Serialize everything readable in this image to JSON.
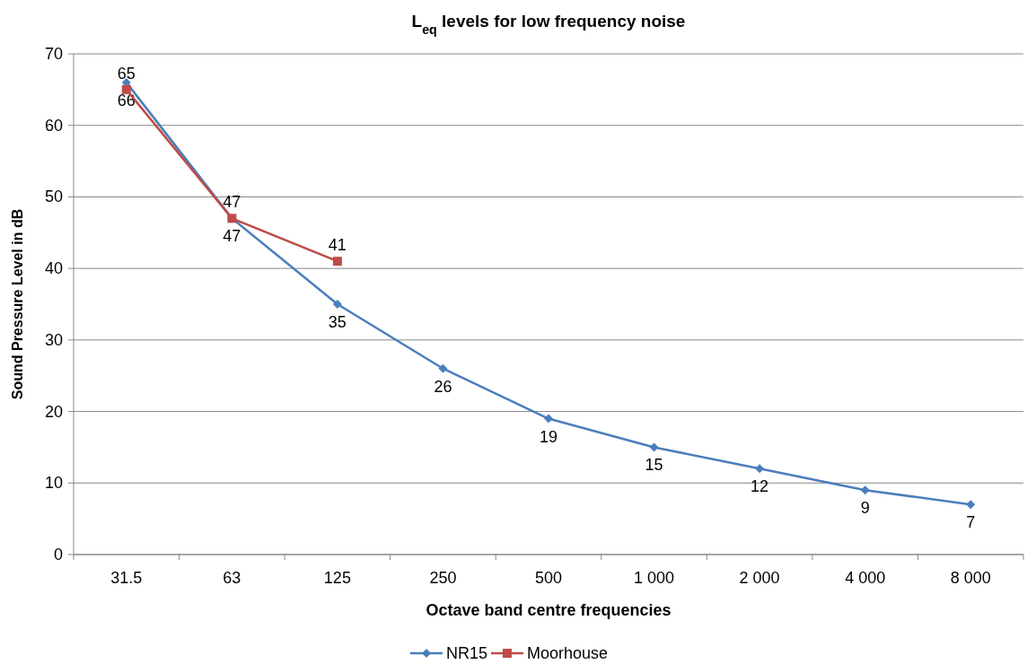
{
  "chart_data": {
    "type": "line",
    "title": "L$_{eq}$ levels for low frequency noise",
    "xlabel": "Octave band centre frequencies",
    "ylabel": "Sound Pressure Level in dB",
    "categories": [
      "31.5",
      "63",
      "125",
      "250",
      "500",
      "1 000",
      "2 000",
      "4 000",
      "8 000"
    ],
    "series": [
      {
        "name": "NR15",
        "color": "#4a7ebb",
        "marker": "diamond",
        "values": [
          66,
          47,
          35,
          26,
          19,
          15,
          12,
          9,
          7
        ]
      },
      {
        "name": "Moorhouse",
        "color": "#be4b48",
        "marker": "square",
        "values": [
          65,
          47,
          41,
          null,
          null,
          null,
          null,
          null,
          null
        ]
      }
    ],
    "ylim": [
      0,
      70
    ],
    "yticks": [
      0,
      10,
      20,
      30,
      40,
      50,
      60,
      70
    ],
    "grid": "y",
    "legend": "bottom",
    "data_labels": true,
    "line_style": "solid"
  }
}
